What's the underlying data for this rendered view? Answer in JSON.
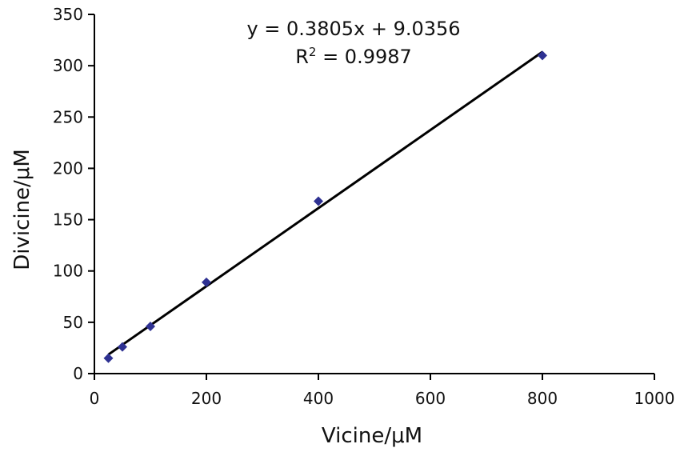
{
  "chart_data": {
    "type": "scatter",
    "title": "",
    "xlabel": "Vicine/μM",
    "ylabel": "Divicine/μM",
    "xlim": [
      0,
      1000
    ],
    "ylim": [
      0,
      350
    ],
    "x_ticks": [
      "0",
      "200",
      "400",
      "600",
      "800",
      "1000"
    ],
    "y_ticks": [
      "0",
      "50",
      "100",
      "150",
      "200",
      "250",
      "300",
      "350"
    ],
    "grid": false,
    "legend": "none",
    "series": [
      {
        "color": "#2e3192",
        "marker": "diamond",
        "points": [
          {
            "x": 25,
            "y": 15
          },
          {
            "x": 50,
            "y": 26
          },
          {
            "x": 100,
            "y": 46
          },
          {
            "x": 200,
            "y": 89
          },
          {
            "x": 400,
            "y": 168
          },
          {
            "x": 800,
            "y": 310
          }
        ]
      }
    ],
    "trendline": {
      "slope": 0.3805,
      "intercept": 9.0356,
      "x_range": [
        25,
        800
      ],
      "color": "#000000",
      "equation_label": "y = 0.3805x + 9.0356",
      "r2_prefix": "R",
      "r2_sup": "2",
      "r2_value": " = 0.9987"
    }
  }
}
